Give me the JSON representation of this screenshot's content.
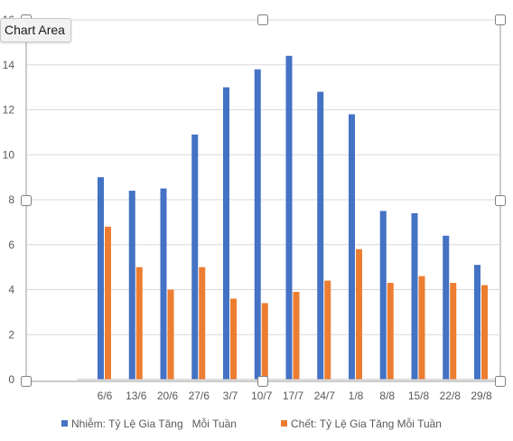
{
  "tooltip": {
    "text": "Chart Area"
  },
  "colors": {
    "infected": "#4472c4",
    "deaths": "#ed7d31",
    "grid": "#d9d9d9",
    "handle": "#808080"
  },
  "chart_data": {
    "type": "bar",
    "categories": [
      "6/6",
      "13/6",
      "20/6",
      "27/6",
      "3/7",
      "10/7",
      "17/7",
      "24/7",
      "1/8",
      "8/8",
      "15/8",
      "22/8",
      "29/8"
    ],
    "series": [
      {
        "name": "Nhiễm: Tỷ Lệ Gia Tăng   Mỗi Tuần",
        "values": [
          9.0,
          8.4,
          8.5,
          10.9,
          13.0,
          13.8,
          14.4,
          12.8,
          11.8,
          7.5,
          7.4,
          6.4,
          5.1
        ]
      },
      {
        "name": "Chết: Tỷ Lệ Gia Tăng Mỗi Tuần",
        "values": [
          6.8,
          5.0,
          4.0,
          5.0,
          3.6,
          3.4,
          3.9,
          4.4,
          5.8,
          4.3,
          4.6,
          4.3,
          4.2
        ]
      }
    ],
    "y_ticks": [
      "0",
      "2",
      "4",
      "6",
      "8",
      "10",
      "12",
      "14",
      "16"
    ],
    "ylim": [
      0,
      16
    ],
    "grid": true,
    "legend_position": "bottom"
  }
}
